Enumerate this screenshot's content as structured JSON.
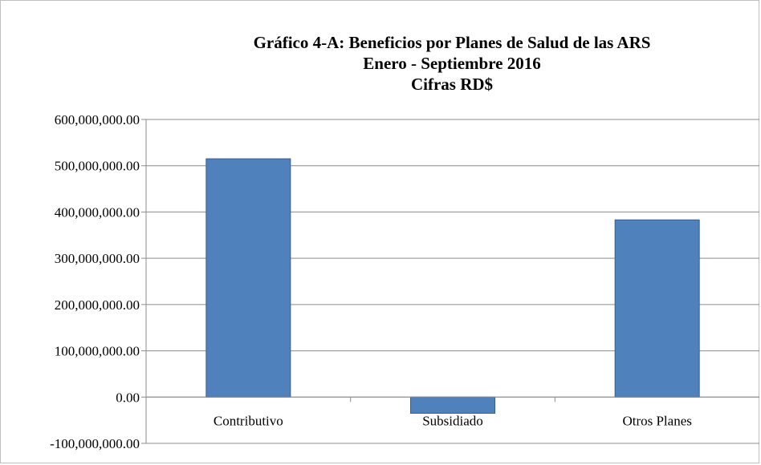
{
  "chart_data": {
    "type": "bar",
    "title": "Gráfico 4-A: Beneficios por  Planes de Salud de las ARS",
    "subtitle": [
      "Enero - Septiembre 2016",
      "Cifras RD$"
    ],
    "categories": [
      "Contributivo",
      "Subsidiado",
      "Otros Planes"
    ],
    "values": [
      515000000,
      -35000000,
      383000000
    ],
    "ylim": [
      -100000000,
      600000000
    ],
    "y_ticks": [
      600000000,
      500000000,
      400000000,
      300000000,
      200000000,
      100000000,
      0,
      -100000000
    ],
    "y_tick_labels": [
      "600,000,000.00",
      "500,000,000.00",
      "400,000,000.00",
      "300,000,000.00",
      "200,000,000.00",
      "100,000,000.00",
      "0.00",
      "-100,000,000.00"
    ],
    "grid": true,
    "legend": "none",
    "colors": {
      "bar": "#4f81bd",
      "bar_edge": "#385d8a",
      "grid": "#8c8c8c",
      "axis": "#8c8c8c"
    }
  }
}
